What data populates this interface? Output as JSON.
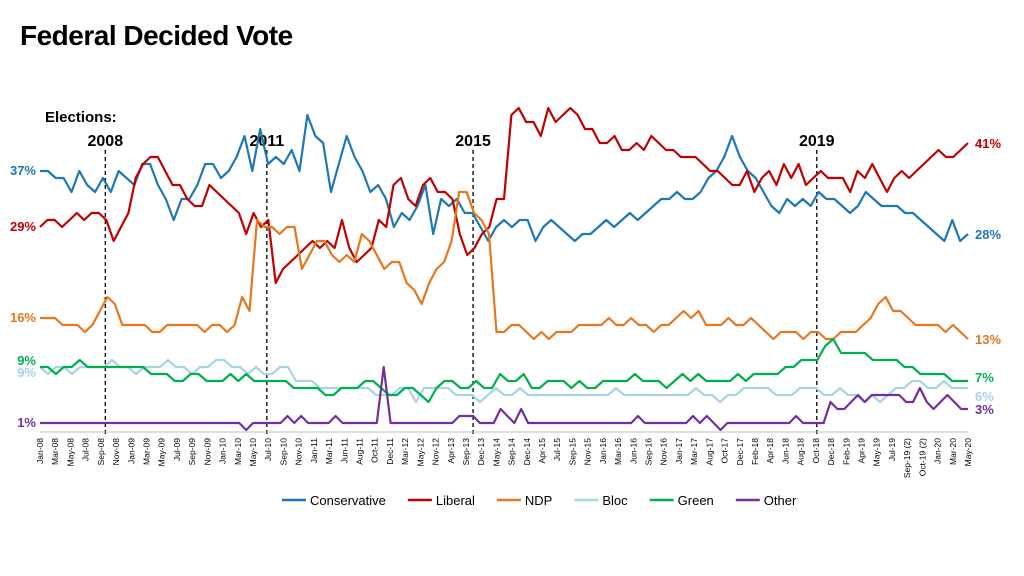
{
  "title": "Federal Decided Vote",
  "chart_data": {
    "type": "line",
    "title": "Federal Decided Vote",
    "ylim": [
      0,
      50
    ],
    "grid": false,
    "legend_position": "bottom",
    "x_tick_labels": [
      "Jan-08",
      "Mar-08",
      "May-08",
      "Jul-08",
      "Sep-08",
      "Nov-08",
      "Jan-09",
      "Mar-09",
      "May-09",
      "Jul-09",
      "Sep-09",
      "Nov-09",
      "Jan-10",
      "Mar-10",
      "May-10",
      "Jul-10",
      "Sep-10",
      "Nov-10",
      "Jan-11",
      "Mar-11",
      "Jun-11",
      "Aug-11",
      "Oct-11",
      "Dec-11",
      "Mar-12",
      "May-12",
      "Nov-12",
      "Apr-13",
      "Sep-13",
      "Dec-13",
      "May-14",
      "Sep-14",
      "Dec-14",
      "Apr-15",
      "Jul-15",
      "Sep-15",
      "Nov-15",
      "Jan-16",
      "Mar-16",
      "Jun-16",
      "Sep-16",
      "Nov-16",
      "Jan-17",
      "Mar-17",
      "Aug-17",
      "Oct-17",
      "Dec-17",
      "Feb-18",
      "Apr-18",
      "Jun-18",
      "Aug-18",
      "Oct-18",
      "Dec-18",
      "Feb-19",
      "Apr-19",
      "May-19",
      "Jul-19",
      "Sep-19 (2)",
      "Oct-19 (2)",
      "Jan-20",
      "Mar-20",
      "May-20"
    ],
    "elections": {
      "header": "Elections:",
      "markers": [
        {
          "label": "2008",
          "x": 9.5
        },
        {
          "label": "2011",
          "x": 33
        },
        {
          "label": "2015",
          "x": 63
        },
        {
          "label": "2019",
          "x": 113
        }
      ]
    },
    "series": [
      {
        "name": "Conservative",
        "color": "#1f77b4",
        "start_label": "37%",
        "end_label": "28%",
        "values": [
          37,
          37,
          36,
          36,
          34,
          37,
          35,
          34,
          36,
          34,
          37,
          36,
          35,
          38,
          38,
          35,
          33,
          30,
          33,
          33,
          35,
          38,
          38,
          36,
          37,
          39,
          42,
          37,
          43,
          38,
          39,
          38,
          40,
          37,
          45,
          42,
          41,
          34,
          38,
          42,
          39,
          37,
          34,
          35,
          33,
          29,
          31,
          30,
          32,
          35,
          28,
          33,
          32,
          33,
          31,
          31,
          29,
          27,
          29,
          30,
          29,
          30,
          30,
          27,
          29,
          30,
          29,
          28,
          27,
          28,
          28,
          29,
          30,
          29,
          30,
          31,
          30,
          31,
          32,
          33,
          33,
          34,
          33,
          33,
          34,
          36,
          37,
          39,
          42,
          39,
          37,
          36,
          34,
          32,
          31,
          33,
          32,
          33,
          32,
          34,
          33,
          33,
          32,
          31,
          32,
          34,
          33,
          32,
          32,
          32,
          31,
          31,
          30,
          29,
          28,
          27,
          30,
          27,
          28
        ]
      },
      {
        "name": "Liberal",
        "color": "#c00000",
        "start_label": "29%",
        "end_label": "41%",
        "values": [
          29,
          30,
          30,
          29,
          30,
          31,
          30,
          31,
          31,
          30,
          27,
          29,
          31,
          36,
          38,
          39,
          39,
          37,
          35,
          35,
          33,
          32,
          32,
          35,
          34,
          33,
          32,
          31,
          28,
          31,
          29,
          30,
          21,
          23,
          24,
          25,
          26,
          27,
          26,
          27,
          26,
          30,
          26,
          24,
          25,
          26,
          30,
          29,
          35,
          36,
          33,
          32,
          35,
          36,
          34,
          34,
          33,
          28,
          25,
          26,
          28,
          29,
          33,
          33,
          45,
          46,
          44,
          44,
          42,
          46,
          44,
          45,
          46,
          45,
          43,
          43,
          41,
          41,
          42,
          40,
          40,
          41,
          40,
          42,
          41,
          40,
          40,
          39,
          39,
          39,
          38,
          37,
          37,
          36,
          35,
          35,
          37,
          34,
          36,
          37,
          35,
          38,
          36,
          38,
          35,
          36,
          37,
          36,
          36,
          36,
          34,
          37,
          36,
          38,
          36,
          34,
          36,
          37,
          36,
          37,
          38,
          39,
          40,
          39,
          39,
          40,
          41
        ]
      },
      {
        "name": "NDP",
        "color": "#e8761e",
        "start_label": "16%",
        "end_label": "13%",
        "values": [
          16,
          16,
          16,
          15,
          15,
          15,
          14,
          15,
          17,
          19,
          18,
          15,
          15,
          15,
          15,
          14,
          14,
          15,
          15,
          15,
          15,
          15,
          14,
          15,
          15,
          14,
          15,
          19,
          17,
          30,
          29,
          29,
          28,
          29,
          29,
          23,
          25,
          27,
          27,
          25,
          24,
          25,
          24,
          28,
          27,
          25,
          23,
          24,
          24,
          21,
          20,
          18,
          21,
          23,
          24,
          27,
          34,
          34,
          31,
          30,
          28,
          14,
          14,
          15,
          15,
          14,
          13,
          14,
          13,
          14,
          14,
          14,
          15,
          15,
          15,
          15,
          16,
          15,
          15,
          16,
          15,
          15,
          14,
          15,
          15,
          16,
          17,
          16,
          17,
          15,
          15,
          15,
          16,
          15,
          15,
          16,
          15,
          14,
          13,
          14,
          14,
          14,
          13,
          14,
          14,
          13,
          13,
          14,
          14,
          14,
          15,
          16,
          18,
          19,
          17,
          17,
          16,
          15,
          15,
          15,
          15,
          14,
          15,
          14,
          13
        ]
      },
      {
        "name": "Bloc",
        "color": "#a8d4e6",
        "start_label": "9%",
        "end_label": "6%",
        "values": [
          9,
          8,
          9,
          9,
          8,
          9,
          9,
          9,
          9,
          10,
          9,
          9,
          8,
          9,
          9,
          9,
          10,
          9,
          9,
          8,
          9,
          9,
          10,
          10,
          9,
          9,
          8,
          9,
          8,
          8,
          9,
          9,
          7,
          7,
          7,
          6,
          6,
          6,
          6,
          6,
          6,
          6,
          5,
          5,
          5,
          6,
          6,
          4,
          6,
          6,
          6,
          6,
          5,
          5,
          5,
          4,
          5,
          6,
          5,
          5,
          6,
          5,
          5,
          5,
          5,
          5,
          5,
          5,
          5,
          5,
          5,
          5,
          6,
          5,
          5,
          5,
          5,
          5,
          5,
          5,
          5,
          5,
          6,
          5,
          5,
          4,
          5,
          5,
          6,
          6,
          6,
          6,
          5,
          5,
          5,
          6,
          6,
          6,
          5,
          5,
          6,
          5,
          5,
          4,
          5,
          4,
          5,
          6,
          6,
          7,
          7,
          6,
          6,
          7,
          6,
          6,
          6
        ]
      },
      {
        "name": "Green",
        "color": "#00b050",
        "start_label": "9%",
        "end_label": "7%",
        "values": [
          9,
          9,
          8,
          9,
          9,
          10,
          9,
          9,
          9,
          9,
          9,
          9,
          9,
          9,
          8,
          8,
          8,
          7,
          7,
          8,
          8,
          7,
          7,
          7,
          8,
          7,
          8,
          7,
          7,
          7,
          7,
          7,
          6,
          6,
          6,
          6,
          5,
          5,
          6,
          6,
          6,
          7,
          7,
          6,
          5,
          5,
          6,
          6,
          5,
          4,
          6,
          7,
          7,
          6,
          6,
          7,
          6,
          6,
          8,
          7,
          7,
          8,
          6,
          6,
          7,
          7,
          7,
          6,
          7,
          6,
          6,
          7,
          7,
          7,
          7,
          8,
          7,
          7,
          7,
          6,
          7,
          8,
          7,
          8,
          7,
          7,
          7,
          7,
          8,
          7,
          8,
          8,
          8,
          8,
          9,
          9,
          10,
          10,
          10,
          12,
          13,
          11,
          11,
          11,
          11,
          10,
          10,
          10,
          10,
          9,
          9,
          8,
          8,
          8,
          8,
          7,
          7,
          7
        ]
      },
      {
        "name": "Other",
        "color": "#7030a0",
        "start_label": "1%",
        "end_label": "3%",
        "values": [
          1,
          1,
          1,
          1,
          1,
          1,
          1,
          1,
          1,
          1,
          1,
          1,
          1,
          1,
          1,
          1,
          1,
          1,
          1,
          1,
          1,
          1,
          1,
          1,
          1,
          1,
          1,
          1,
          1,
          1,
          0,
          1,
          1,
          1,
          1,
          1,
          2,
          1,
          2,
          1,
          1,
          1,
          1,
          2,
          1,
          1,
          1,
          1,
          1,
          1,
          9,
          1,
          1,
          1,
          1,
          1,
          1,
          1,
          1,
          1,
          1,
          2,
          2,
          2,
          1,
          1,
          1,
          3,
          2,
          1,
          3,
          1,
          1,
          1,
          1,
          1,
          1,
          1,
          1,
          1,
          1,
          1,
          1,
          1,
          1,
          1,
          1,
          2,
          1,
          1,
          1,
          1,
          1,
          1,
          1,
          2,
          1,
          2,
          1,
          0,
          1,
          1,
          1,
          1,
          1,
          1,
          1,
          1,
          1,
          1,
          2,
          1,
          1,
          1,
          1,
          4,
          3,
          3,
          4,
          5,
          4,
          5,
          5,
          5,
          5,
          5,
          4,
          4,
          6,
          4,
          3,
          4,
          5,
          4,
          3,
          3
        ]
      }
    ]
  }
}
